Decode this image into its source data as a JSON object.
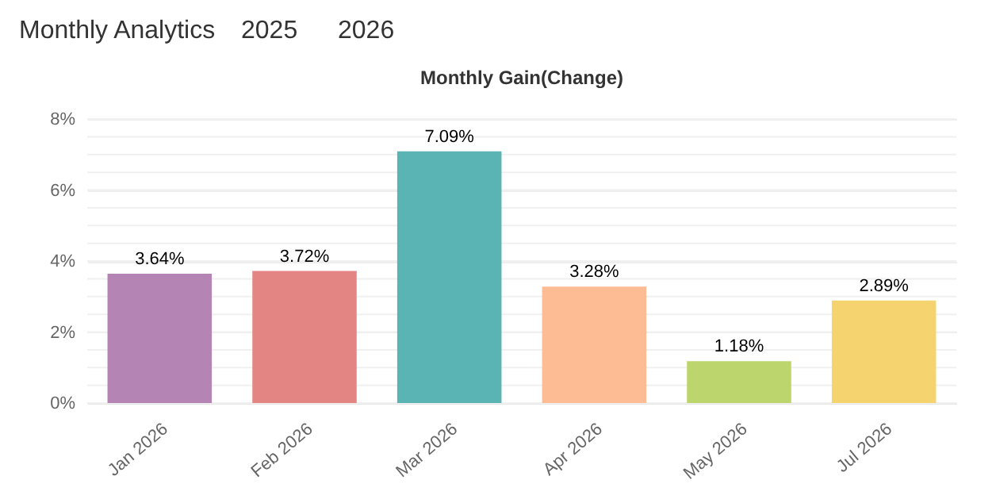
{
  "chart_data": {
    "type": "bar",
    "title": "Monthly Gain(Change)",
    "annotations": [
      "Monthly Analytics",
      "2025",
      "2026"
    ],
    "categories": [
      "Jan 2026",
      "Feb 2026",
      "Mar 2026",
      "Apr 2026",
      "May 2026",
      "Jul 2026"
    ],
    "values": [
      3.64,
      3.72,
      7.09,
      3.28,
      1.18,
      2.89
    ],
    "value_labels": [
      "3.64%",
      "3.72%",
      "7.09%",
      "3.28%",
      "1.18%",
      "2.89%"
    ],
    "colors": [
      "#b384b4",
      "#e38683",
      "#5ab4b4",
      "#febc94",
      "#bcd66d",
      "#f5d470"
    ],
    "ylim": [
      0,
      8
    ],
    "yticks": [
      {
        "value": 0,
        "label": "0%"
      },
      {
        "value": 0.5,
        "label": null
      },
      {
        "value": 1,
        "label": null
      },
      {
        "value": 1.5,
        "label": null
      },
      {
        "value": 2,
        "label": "2%"
      },
      {
        "value": 2.5,
        "label": null
      },
      {
        "value": 3,
        "label": null
      },
      {
        "value": 3.5,
        "label": null
      },
      {
        "value": 4,
        "label": "4%"
      },
      {
        "value": 4.5,
        "label": null
      },
      {
        "value": 5,
        "label": null
      },
      {
        "value": 5.5,
        "label": null
      },
      {
        "value": 6,
        "label": "6%"
      },
      {
        "value": 6.5,
        "label": null
      },
      {
        "value": 7,
        "label": null
      },
      {
        "value": 7.5,
        "label": null
      },
      {
        "value": 8,
        "label": "8%"
      }
    ],
    "grid": "y"
  }
}
